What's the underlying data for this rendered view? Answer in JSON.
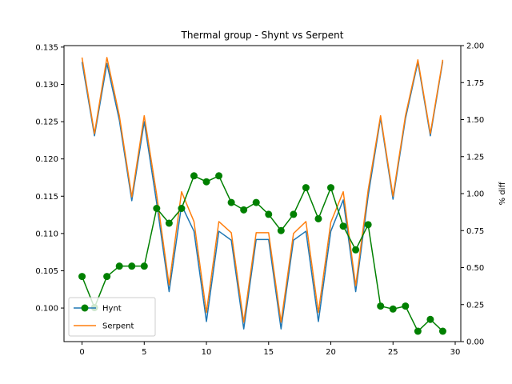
{
  "chart_data": {
    "type": "line",
    "title": "Thermal group - Shynt vs Serpent",
    "xlabel": "",
    "ylabel": "",
    "y2label": "% diff",
    "xlim": [
      -1.45,
      30.45
    ],
    "ylim": [
      0.0955,
      0.1352
    ],
    "y2lim": [
      0.0,
      2.0
    ],
    "x_ticks": [
      0,
      5,
      10,
      15,
      20,
      25,
      30
    ],
    "x_tick_labels": [
      "0",
      "5",
      "10",
      "15",
      "20",
      "25",
      "30"
    ],
    "y_ticks": [
      0.1,
      0.105,
      0.11,
      0.115,
      0.12,
      0.125,
      0.13,
      0.135
    ],
    "y_tick_labels": [
      "0.100",
      "0.105",
      "0.110",
      "0.115",
      "0.120",
      "0.125",
      "0.130",
      "0.135"
    ],
    "y2_ticks": [
      0.0,
      0.25,
      0.5,
      0.75,
      1.0,
      1.25,
      1.5,
      1.75,
      2.0
    ],
    "y2_tick_labels": [
      "0.00",
      "0.25",
      "0.50",
      "0.75",
      "1.00",
      "1.25",
      "1.50",
      "1.75",
      "2.00"
    ],
    "x": [
      0,
      1,
      2,
      3,
      4,
      5,
      6,
      7,
      8,
      9,
      10,
      11,
      12,
      13,
      14,
      15,
      16,
      17,
      18,
      19,
      20,
      21,
      22,
      23,
      24,
      25,
      26,
      27,
      28,
      29
    ],
    "legend_position": "lower left",
    "grid": false,
    "series": [
      {
        "name": "Hynt",
        "axis": "left",
        "color": "#1f77b4",
        "marker": "none",
        "values": [
          0.133,
          0.1231,
          0.1328,
          0.1252,
          0.1144,
          0.125,
          0.1141,
          0.1022,
          0.1138,
          0.1103,
          0.0982,
          0.1103,
          0.1091,
          0.0972,
          0.1092,
          0.1092,
          0.0972,
          0.1091,
          0.1103,
          0.0982,
          0.1103,
          0.1145,
          0.1022,
          0.115,
          0.1255,
          0.1146,
          0.1254,
          0.133,
          0.1231,
          0.1331
        ]
      },
      {
        "name": "Serpent",
        "axis": "left",
        "color": "#ff7f0e",
        "marker": "none",
        "values": [
          0.1336,
          0.1234,
          0.1336,
          0.1258,
          0.1149,
          0.1258,
          0.1152,
          0.1031,
          0.1156,
          0.1116,
          0.0994,
          0.1116,
          0.1101,
          0.0981,
          0.1101,
          0.1101,
          0.0981,
          0.11,
          0.1116,
          0.0994,
          0.1115,
          0.1156,
          0.103,
          0.1158,
          0.1258,
          0.115,
          0.1258,
          0.1333,
          0.1234,
          0.1333
        ]
      },
      {
        "name": "% diff",
        "axis": "right",
        "color": "#008000",
        "marker": "circle",
        "values": [
          0.44,
          0.23,
          0.44,
          0.51,
          0.51,
          0.51,
          0.9,
          0.8,
          0.9,
          1.12,
          1.08,
          1.12,
          0.94,
          0.89,
          0.94,
          0.86,
          0.75,
          0.86,
          1.04,
          0.83,
          1.04,
          0.78,
          0.62,
          0.79,
          0.24,
          0.22,
          0.24,
          0.07,
          0.15,
          0.07
        ]
      }
    ]
  }
}
